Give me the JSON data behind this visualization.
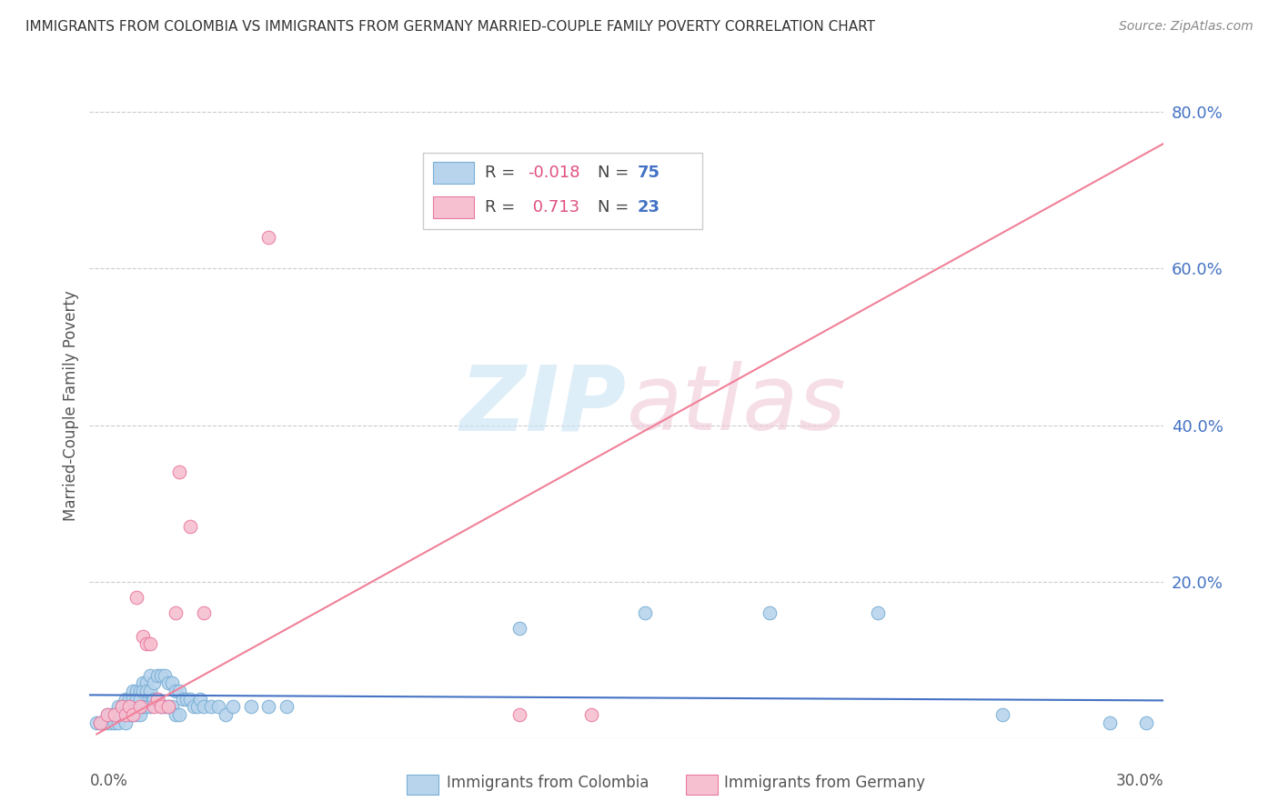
{
  "title": "IMMIGRANTS FROM COLOMBIA VS IMMIGRANTS FROM GERMANY MARRIED-COUPLE FAMILY POVERTY CORRELATION CHART",
  "source": "Source: ZipAtlas.com",
  "ylabel": "Married-Couple Family Poverty",
  "xlim": [
    0.0,
    0.3
  ],
  "ylim": [
    0.0,
    0.85
  ],
  "colombia_color": "#b8d4ed",
  "germany_color": "#f7c0d0",
  "colombia_edge": "#7aafd4",
  "germany_edge": "#e87aa0",
  "colombia_R": -0.018,
  "colombia_N": 75,
  "germany_R": 0.713,
  "germany_N": 23,
  "colombia_line_color": "#4472c4",
  "germany_line_color": "#f08098",
  "watermark_color": "#daeef8",
  "colombia_scatter_x": [
    0.002,
    0.003,
    0.004,
    0.005,
    0.005,
    0.006,
    0.006,
    0.007,
    0.007,
    0.008,
    0.008,
    0.008,
    0.009,
    0.009,
    0.01,
    0.01,
    0.01,
    0.011,
    0.011,
    0.011,
    0.012,
    0.012,
    0.012,
    0.013,
    0.013,
    0.013,
    0.014,
    0.014,
    0.014,
    0.015,
    0.015,
    0.015,
    0.016,
    0.016,
    0.016,
    0.017,
    0.017,
    0.017,
    0.018,
    0.018,
    0.019,
    0.019,
    0.02,
    0.02,
    0.021,
    0.021,
    0.022,
    0.022,
    0.023,
    0.023,
    0.024,
    0.024,
    0.025,
    0.025,
    0.026,
    0.027,
    0.028,
    0.029,
    0.03,
    0.031,
    0.032,
    0.034,
    0.036,
    0.038,
    0.04,
    0.045,
    0.05,
    0.055,
    0.12,
    0.155,
    0.19,
    0.22,
    0.255,
    0.285,
    0.295
  ],
  "colombia_scatter_y": [
    0.02,
    0.02,
    0.02,
    0.03,
    0.02,
    0.03,
    0.02,
    0.03,
    0.02,
    0.04,
    0.03,
    0.02,
    0.04,
    0.03,
    0.05,
    0.04,
    0.02,
    0.05,
    0.04,
    0.03,
    0.06,
    0.05,
    0.03,
    0.06,
    0.05,
    0.03,
    0.06,
    0.05,
    0.03,
    0.07,
    0.06,
    0.04,
    0.07,
    0.06,
    0.04,
    0.08,
    0.06,
    0.04,
    0.07,
    0.05,
    0.08,
    0.05,
    0.08,
    0.04,
    0.08,
    0.04,
    0.07,
    0.04,
    0.07,
    0.04,
    0.06,
    0.03,
    0.06,
    0.03,
    0.05,
    0.05,
    0.05,
    0.04,
    0.04,
    0.05,
    0.04,
    0.04,
    0.04,
    0.03,
    0.04,
    0.04,
    0.04,
    0.04,
    0.14,
    0.16,
    0.16,
    0.16,
    0.03,
    0.02,
    0.02
  ],
  "germany_scatter_x": [
    0.003,
    0.005,
    0.007,
    0.009,
    0.01,
    0.011,
    0.012,
    0.013,
    0.014,
    0.015,
    0.016,
    0.017,
    0.018,
    0.019,
    0.02,
    0.022,
    0.024,
    0.025,
    0.028,
    0.032,
    0.05,
    0.12,
    0.14
  ],
  "germany_scatter_y": [
    0.02,
    0.03,
    0.03,
    0.04,
    0.03,
    0.04,
    0.03,
    0.18,
    0.04,
    0.13,
    0.12,
    0.12,
    0.04,
    0.05,
    0.04,
    0.04,
    0.16,
    0.34,
    0.27,
    0.16,
    0.64,
    0.03,
    0.03
  ],
  "colombia_line_x": [
    0.0,
    0.3
  ],
  "colombia_line_y": [
    0.055,
    0.048
  ],
  "germany_line_x": [
    0.002,
    0.3
  ],
  "germany_line_y": [
    0.005,
    0.76
  ],
  "y_tick_positions": [
    0.0,
    0.2,
    0.4,
    0.6,
    0.8
  ],
  "y_tick_labels": [
    "",
    "20.0%",
    "40.0%",
    "60.0%",
    "80.0%"
  ]
}
